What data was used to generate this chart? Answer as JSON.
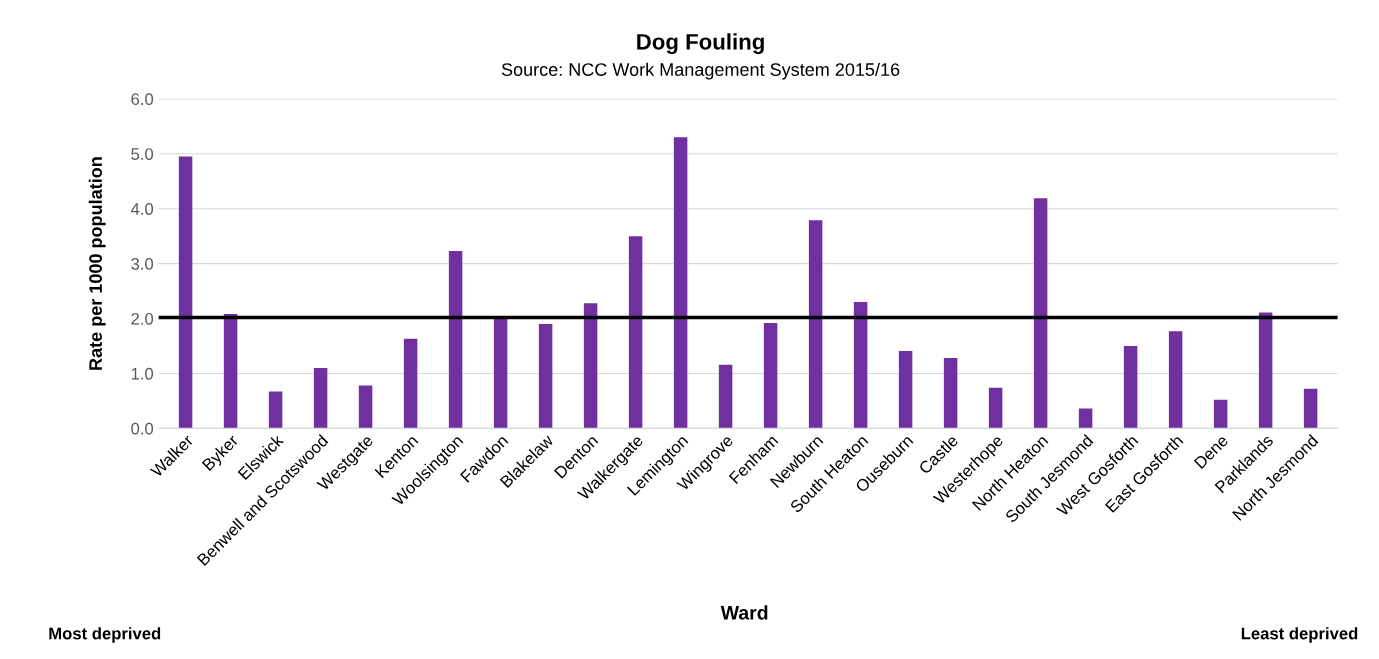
{
  "chart_data": {
    "type": "bar",
    "title": "Dog Fouling",
    "subtitle": "Source: NCC Work Management System 2015/16",
    "xlabel": "Ward",
    "ylabel": "Rate per 1000 population",
    "categories": [
      "Walker",
      "Byker",
      "Elswick",
      "Benwell and Scotswood",
      "Westgate",
      "Kenton",
      "Woolsington",
      "Fawdon",
      "Blakelaw",
      "Denton",
      "Walkergate",
      "Lemington",
      "Wingrove",
      "Fenham",
      "Newburn",
      "South Heaton",
      "Ouseburn",
      "Castle",
      "Westerhope",
      "North Heaton",
      "South Jesmond",
      "West Gosforth",
      "East Gosforth",
      "Dene",
      "Parklands",
      "North Jesmond"
    ],
    "values": [
      4.95,
      2.08,
      0.67,
      1.1,
      0.78,
      1.63,
      3.23,
      2.0,
      1.9,
      2.28,
      3.5,
      5.3,
      1.16,
      1.92,
      3.79,
      2.3,
      1.41,
      1.28,
      0.74,
      4.19,
      0.36,
      1.5,
      1.77,
      0.52,
      2.11,
      0.72
    ],
    "color": "#7030a0",
    "ylim": [
      0,
      6
    ],
    "yticks": [
      {
        "value": 0,
        "label": "0.0"
      },
      {
        "value": 1,
        "label": "1.0"
      },
      {
        "value": 2,
        "label": "2.0"
      },
      {
        "value": 3,
        "label": "3.0"
      },
      {
        "value": 4,
        "label": "4.0"
      },
      {
        "value": 5,
        "label": "5.0"
      },
      {
        "value": 6,
        "label": "6.0"
      }
    ],
    "grid": "y",
    "ref_lines": [
      {
        "axis": "y",
        "value": 2.02,
        "color": "#000000"
      }
    ],
    "annotations": [
      "Most deprived",
      "Least deprived"
    ]
  }
}
